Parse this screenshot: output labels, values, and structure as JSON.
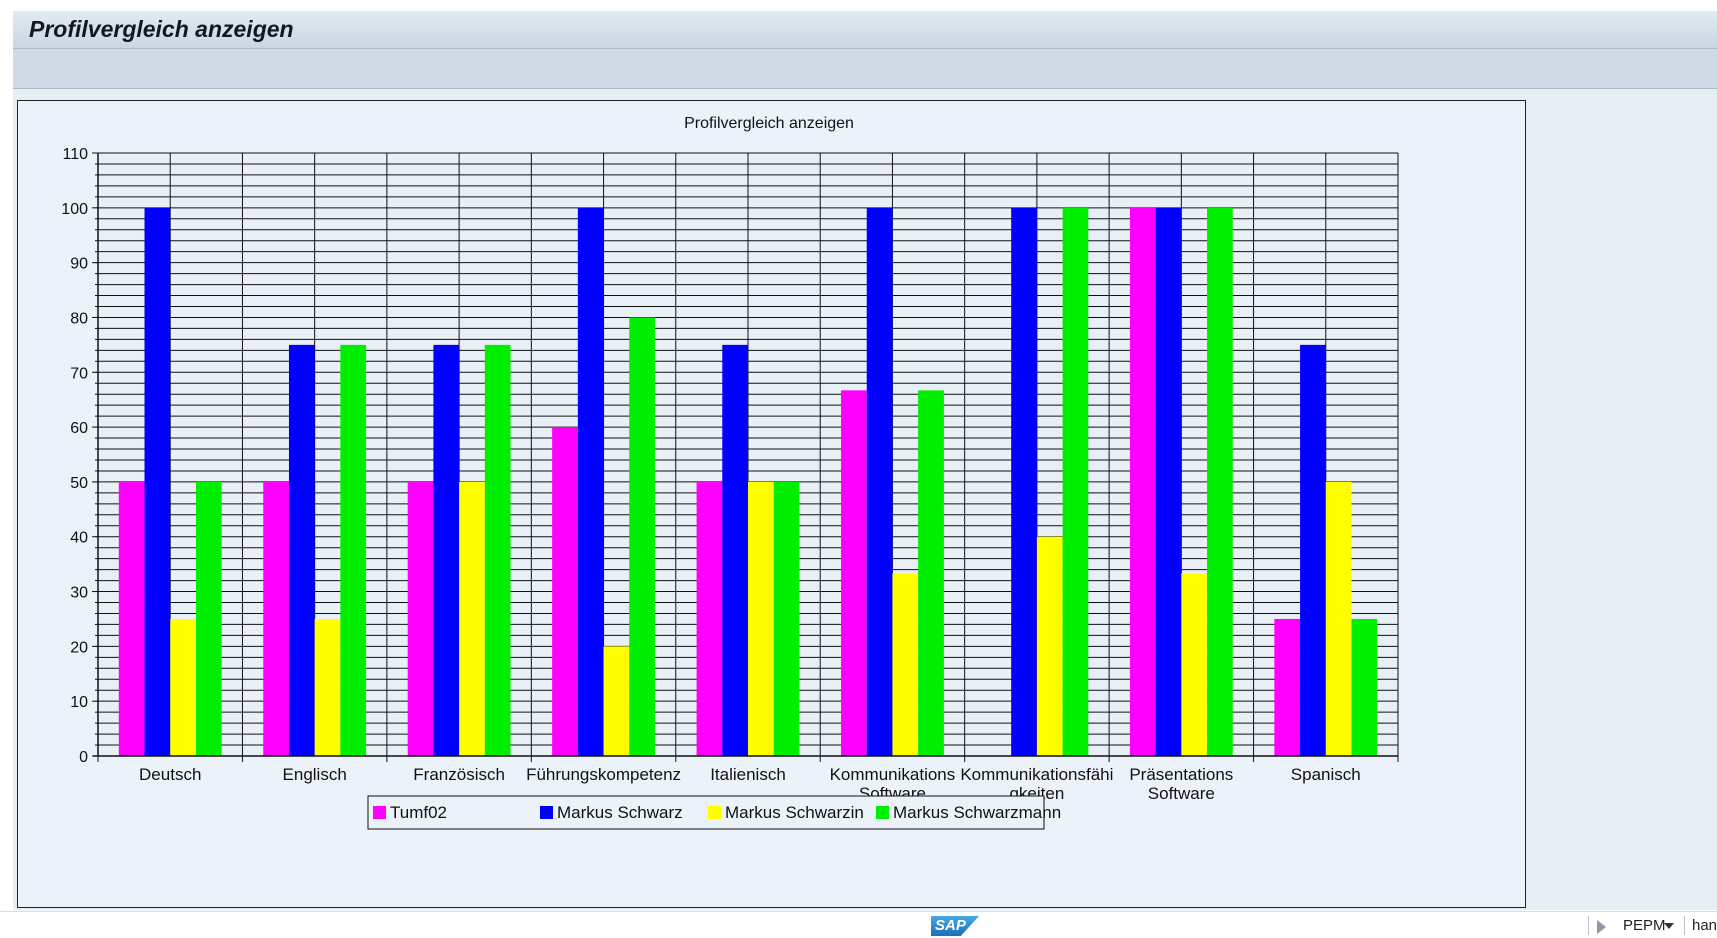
{
  "window": {
    "title": "Profilvergleich anzeigen"
  },
  "chart_data": {
    "type": "bar",
    "title": "Profilvergleich anzeigen",
    "xlabel": "",
    "ylabel": "",
    "ylim": [
      0,
      110
    ],
    "yticks": [
      0,
      10,
      20,
      30,
      40,
      50,
      60,
      70,
      80,
      90,
      100,
      110
    ],
    "grid": true,
    "legend_position": "bottom",
    "categories": [
      [
        "Deutsch"
      ],
      [
        "Englisch"
      ],
      [
        "Französisch"
      ],
      [
        "Führungskompetenz"
      ],
      [
        "Italienisch"
      ],
      [
        "Kommunikations",
        "Software"
      ],
      [
        "Kommunikationsfähi",
        "gkeiten"
      ],
      [
        "Präsentations",
        "Software"
      ],
      [
        "Spanisch"
      ]
    ],
    "series": [
      {
        "name": "Tumf02",
        "color": "#ff00ff",
        "values": [
          50,
          50,
          50,
          60,
          50,
          66.7,
          0,
          100,
          25
        ]
      },
      {
        "name": "Markus Schwarz",
        "color": "#0000ff",
        "values": [
          100,
          75,
          75,
          100,
          75,
          100,
          100,
          100,
          75
        ]
      },
      {
        "name": "Markus Schwarzin",
        "color": "#ffff00",
        "values": [
          25,
          25,
          50,
          20,
          50,
          33.3,
          40,
          33.3,
          50
        ]
      },
      {
        "name": "Markus Schwarzmann",
        "color": "#00ee00",
        "values": [
          50,
          75,
          75,
          80,
          50,
          66.7,
          100,
          100,
          25
        ]
      }
    ]
  },
  "status_bar": {
    "logo": "SAP",
    "system": "PEPM",
    "host": "han",
    "icons": [
      "play-icon",
      "dropdown-caret-icon"
    ]
  }
}
